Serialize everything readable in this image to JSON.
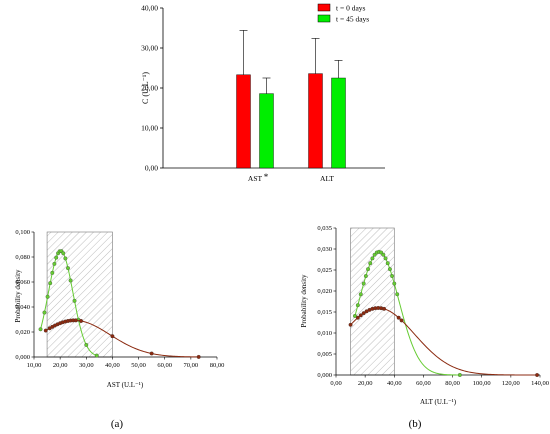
{
  "chart_data": [
    {
      "type": "bar",
      "title": "",
      "categories": [
        "AST",
        "ALT"
      ],
      "category_marks": [
        "*",
        ""
      ],
      "ylabel": "C (U.L⁻¹)",
      "ylim": [
        0,
        40
      ],
      "yticks": [
        "0,00",
        "10,00",
        "20,00",
        "30,00",
        "40,00"
      ],
      "legend_position": "top-right",
      "series": [
        {
          "name": "t = 0 days",
          "color": "#ff0000",
          "values": [
            23.3,
            23.6
          ],
          "errors": [
            11.1,
            8.8
          ]
        },
        {
          "name": "t = 45 days",
          "color": "#00ee00",
          "values": [
            18.6,
            22.5
          ],
          "errors": [
            3.9,
            4.4
          ]
        }
      ]
    },
    {
      "type": "line",
      "panel_label": "(a)",
      "xlabel": "AST (U.L⁻¹)",
      "ylabel": "Probability density",
      "xlim": [
        10,
        80
      ],
      "ylim": [
        0,
        0.1
      ],
      "xticks": [
        "10,00",
        "20,00",
        "30,00",
        "40,00",
        "50,00",
        "60,00",
        "70,00",
        "80,00"
      ],
      "yticks": [
        "0,000",
        "0,020",
        "0,040",
        "0,060",
        "0,080",
        "0,100"
      ],
      "reference_range": [
        15,
        40
      ],
      "series": [
        {
          "color": "#66cc33",
          "mean": 20.2,
          "sd": 4.7,
          "x": [
            12.5,
            14,
            15.2,
            16.2,
            17,
            17.8,
            18.5,
            19.2,
            19.8,
            20.5,
            21.2,
            22,
            23,
            24,
            25.5,
            27,
            30,
            34
          ]
        },
        {
          "color": "#8b2a10",
          "mean": 25.5,
          "sd": 13.6,
          "x": [
            14.5,
            16,
            17,
            18,
            19,
            20,
            21,
            22,
            23,
            24,
            25,
            26,
            28,
            40,
            55,
            73
          ]
        }
      ]
    },
    {
      "type": "line",
      "panel_label": "(b)",
      "xlabel": "ALT (U.L⁻¹)",
      "ylabel": "Probability density",
      "xlim": [
        0,
        140
      ],
      "ylim": [
        0,
        0.035
      ],
      "xticks": [
        "0,00",
        "20,00",
        "40,00",
        "60,00",
        "80,00",
        "100,00",
        "120,00",
        "140,00"
      ],
      "yticks": [
        "0,000",
        "0,005",
        "0,010",
        "0,015",
        "0,020",
        "0,025",
        "0,030",
        "0,035"
      ],
      "reference_range": [
        10,
        40
      ],
      "series": [
        {
          "color": "#66cc33",
          "mean": 29.5,
          "sd": 13.6,
          "x": [
            13,
            15,
            17,
            19,
            20.5,
            22,
            23.5,
            25,
            26.5,
            28,
            29.5,
            31,
            32.5,
            34,
            35.5,
            37,
            38.5,
            40,
            42,
            85
          ]
        },
        {
          "color": "#8b2a10",
          "mean": 29,
          "sd": 25,
          "x": [
            10,
            15,
            17,
            19,
            21,
            23,
            25,
            27,
            29,
            31,
            33,
            43,
            45,
            138
          ]
        }
      ]
    }
  ]
}
